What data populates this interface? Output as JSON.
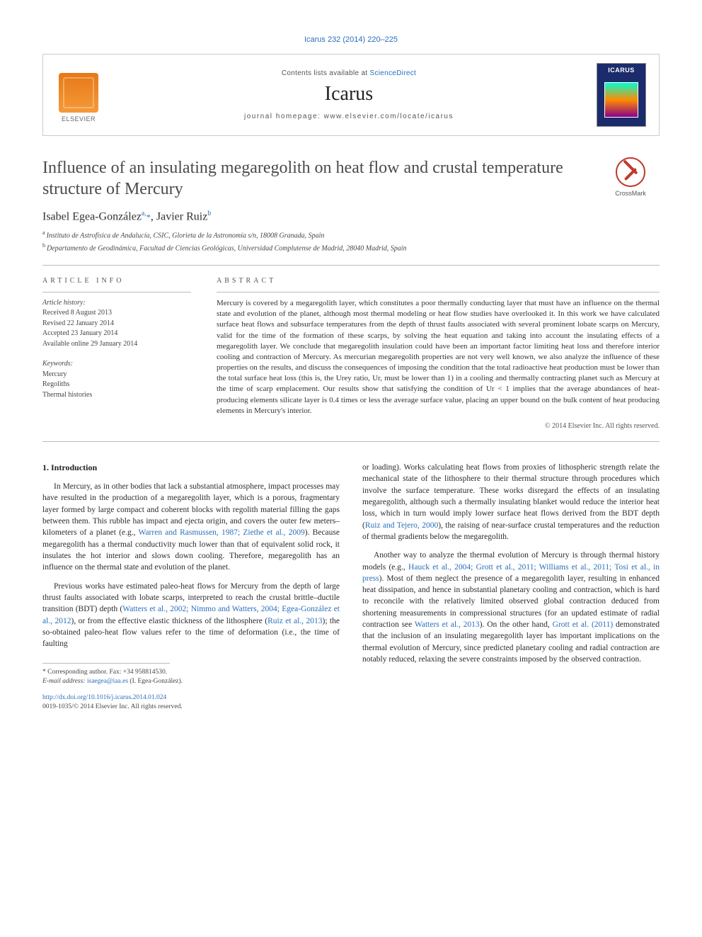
{
  "topCitation": "Icarus 232 (2014) 220–225",
  "journalBox": {
    "contentsPrefix": "Contents lists available at ",
    "contentsLink": "ScienceDirect",
    "journalName": "Icarus",
    "homepagePrefix": "journal homepage: ",
    "homepageUrl": "www.elsevier.com/locate/icarus",
    "publisherWord": "ELSEVIER",
    "coverTitle": "ICARUS"
  },
  "crossmark": {
    "label": "CrossMark"
  },
  "article": {
    "title": "Influence of an insulating megaregolith on heat flow and crustal temperature structure of Mercury",
    "authorsHtmlParts": {
      "a1_name": "Isabel Egea-González",
      "a1_sup": "a,",
      "a1_star": "*",
      "sep": ", ",
      "a2_name": "Javier Ruiz",
      "a2_sup": "b"
    },
    "affiliations": {
      "a": "Instituto de Astrofísica de Andalucía, CSIC, Glorieta de la Astronomía s/n, 18008 Granada, Spain",
      "b": "Departamento de Geodinámica, Facultad de Ciencias Geológicas, Universidad Complutense de Madrid, 28040 Madrid, Spain"
    }
  },
  "meta": {
    "infoHeading": "article info",
    "abstractHeading": "abstract",
    "historyLabel": "Article history:",
    "received": "Received 8 August 2013",
    "revised": "Revised 22 January 2014",
    "accepted": "Accepted 23 January 2014",
    "online": "Available online 29 January 2014",
    "keywordsLabel": "Keywords:",
    "keywords": [
      "Mercury",
      "Regoliths",
      "Thermal histories"
    ]
  },
  "abstractText": "Mercury is covered by a megaregolith layer, which constitutes a poor thermally conducting layer that must have an influence on the thermal state and evolution of the planet, although most thermal modeling or heat flow studies have overlooked it. In this work we have calculated surface heat flows and subsurface temperatures from the depth of thrust faults associated with several prominent lobate scarps on Mercury, valid for the time of the formation of these scarps, by solving the heat equation and taking into account the insulating effects of a megaregolith layer. We conclude that megaregolith insulation could have been an important factor limiting heat loss and therefore interior cooling and contraction of Mercury. As mercurian megaregolith properties are not very well known, we also analyze the influence of these properties on the results, and discuss the consequences of imposing the condition that the total radioactive heat production must be lower than the total surface heat loss (this is, the Urey ratio, Ur, must be lower than 1) in a cooling and thermally contracting planet such as Mercury at the time of scarp emplacement. Our results show that satisfying the condition of Ur < 1 implies that the average abundances of heat-producing elements silicate layer is 0.4 times or less the average surface value, placing an upper bound on the bulk content of heat producing elements in Mercury's interior.",
  "copyright": "© 2014 Elsevier Inc. All rights reserved.",
  "sections": {
    "intro_heading": "1. Introduction",
    "p1_a": "In Mercury, as in other bodies that lack a substantial atmosphere, impact processes may have resulted in the production of a megaregolith layer, which is a porous, fragmentary layer formed by large compact and coherent blocks with regolith material filling the gaps between them. This rubble has impact and ejecta origin, and covers the outer few meters–kilometers of a planet (e.g., ",
    "p1_ref1": "Warren and Rasmussen, 1987; Ziethe et al., 2009",
    "p1_b": "). Because megaregolith has a thermal conductivity much lower than that of equivalent solid rock, it insulates the hot interior and slows down cooling. Therefore, megaregolith has an influence on the thermal state and evolution of the planet.",
    "p2_a": "Previous works have estimated paleo-heat flows for Mercury from the depth of large thrust faults associated with lobate scarps, interpreted to reach the crustal brittle–ductile transition (BDT) depth (",
    "p2_ref1": "Watters et al., 2002; Nimmo and Watters, 2004; Egea-González et al., 2012",
    "p2_b": "), or from the effective elastic thickness of the lithosphere (",
    "p2_ref2": "Ruiz et al., 2013",
    "p2_c": "); the so-obtained paleo-heat flow values refer to the time of deformation (i.e., the time of faulting",
    "p3_a": "or loading). Works calculating heat flows from proxies of lithospheric strength relate the mechanical state of the lithosphere to their thermal structure through procedures which involve the surface temperature. These works disregard the effects of an insulating megaregolith, although such a thermally insulating blanket would reduce the interior heat loss, which in turn would imply lower surface heat flows derived from the BDT depth (",
    "p3_ref1": "Ruiz and Tejero, 2000",
    "p3_b": "), the raising of near-surface crustal temperatures and the reduction of thermal gradients below the megaregolith.",
    "p4_a": "Another way to analyze the thermal evolution of Mercury is through thermal history models (e.g., ",
    "p4_ref1": "Hauck et al., 2004; Grott et al., 2011; Williams et al., 2011; Tosi et al., in press",
    "p4_b": "). Most of them neglect the presence of a megaregolith layer, resulting in enhanced heat dissipation, and hence in substantial planetary cooling and contraction, which is hard to reconcile with the relatively limited observed global contraction deduced from shortening measurements in compressional structures (for an updated estimate of radial contraction see ",
    "p4_ref2": "Watters et al., 2013",
    "p4_c": "). On the other hand, ",
    "p4_ref3": "Grott et al. (2011)",
    "p4_d": " demonstrated that the inclusion of an insulating megaregolith layer has important implications on the thermal evolution of Mercury, since predicted planetary cooling and radial contraction are notably reduced, relaxing the severe constraints imposed by the observed contraction."
  },
  "footnotes": {
    "corr_label": "* Corresponding author. Fax: +34 958814530.",
    "email_label": "E-mail address: ",
    "email": "isaegea@iaa.es",
    "email_who": " (I. Egea-González)."
  },
  "doi": {
    "url": "http://dx.doi.org/10.1016/j.icarus.2014.01.024",
    "issn_line": "0019-1035/© 2014 Elsevier Inc. All rights reserved."
  }
}
